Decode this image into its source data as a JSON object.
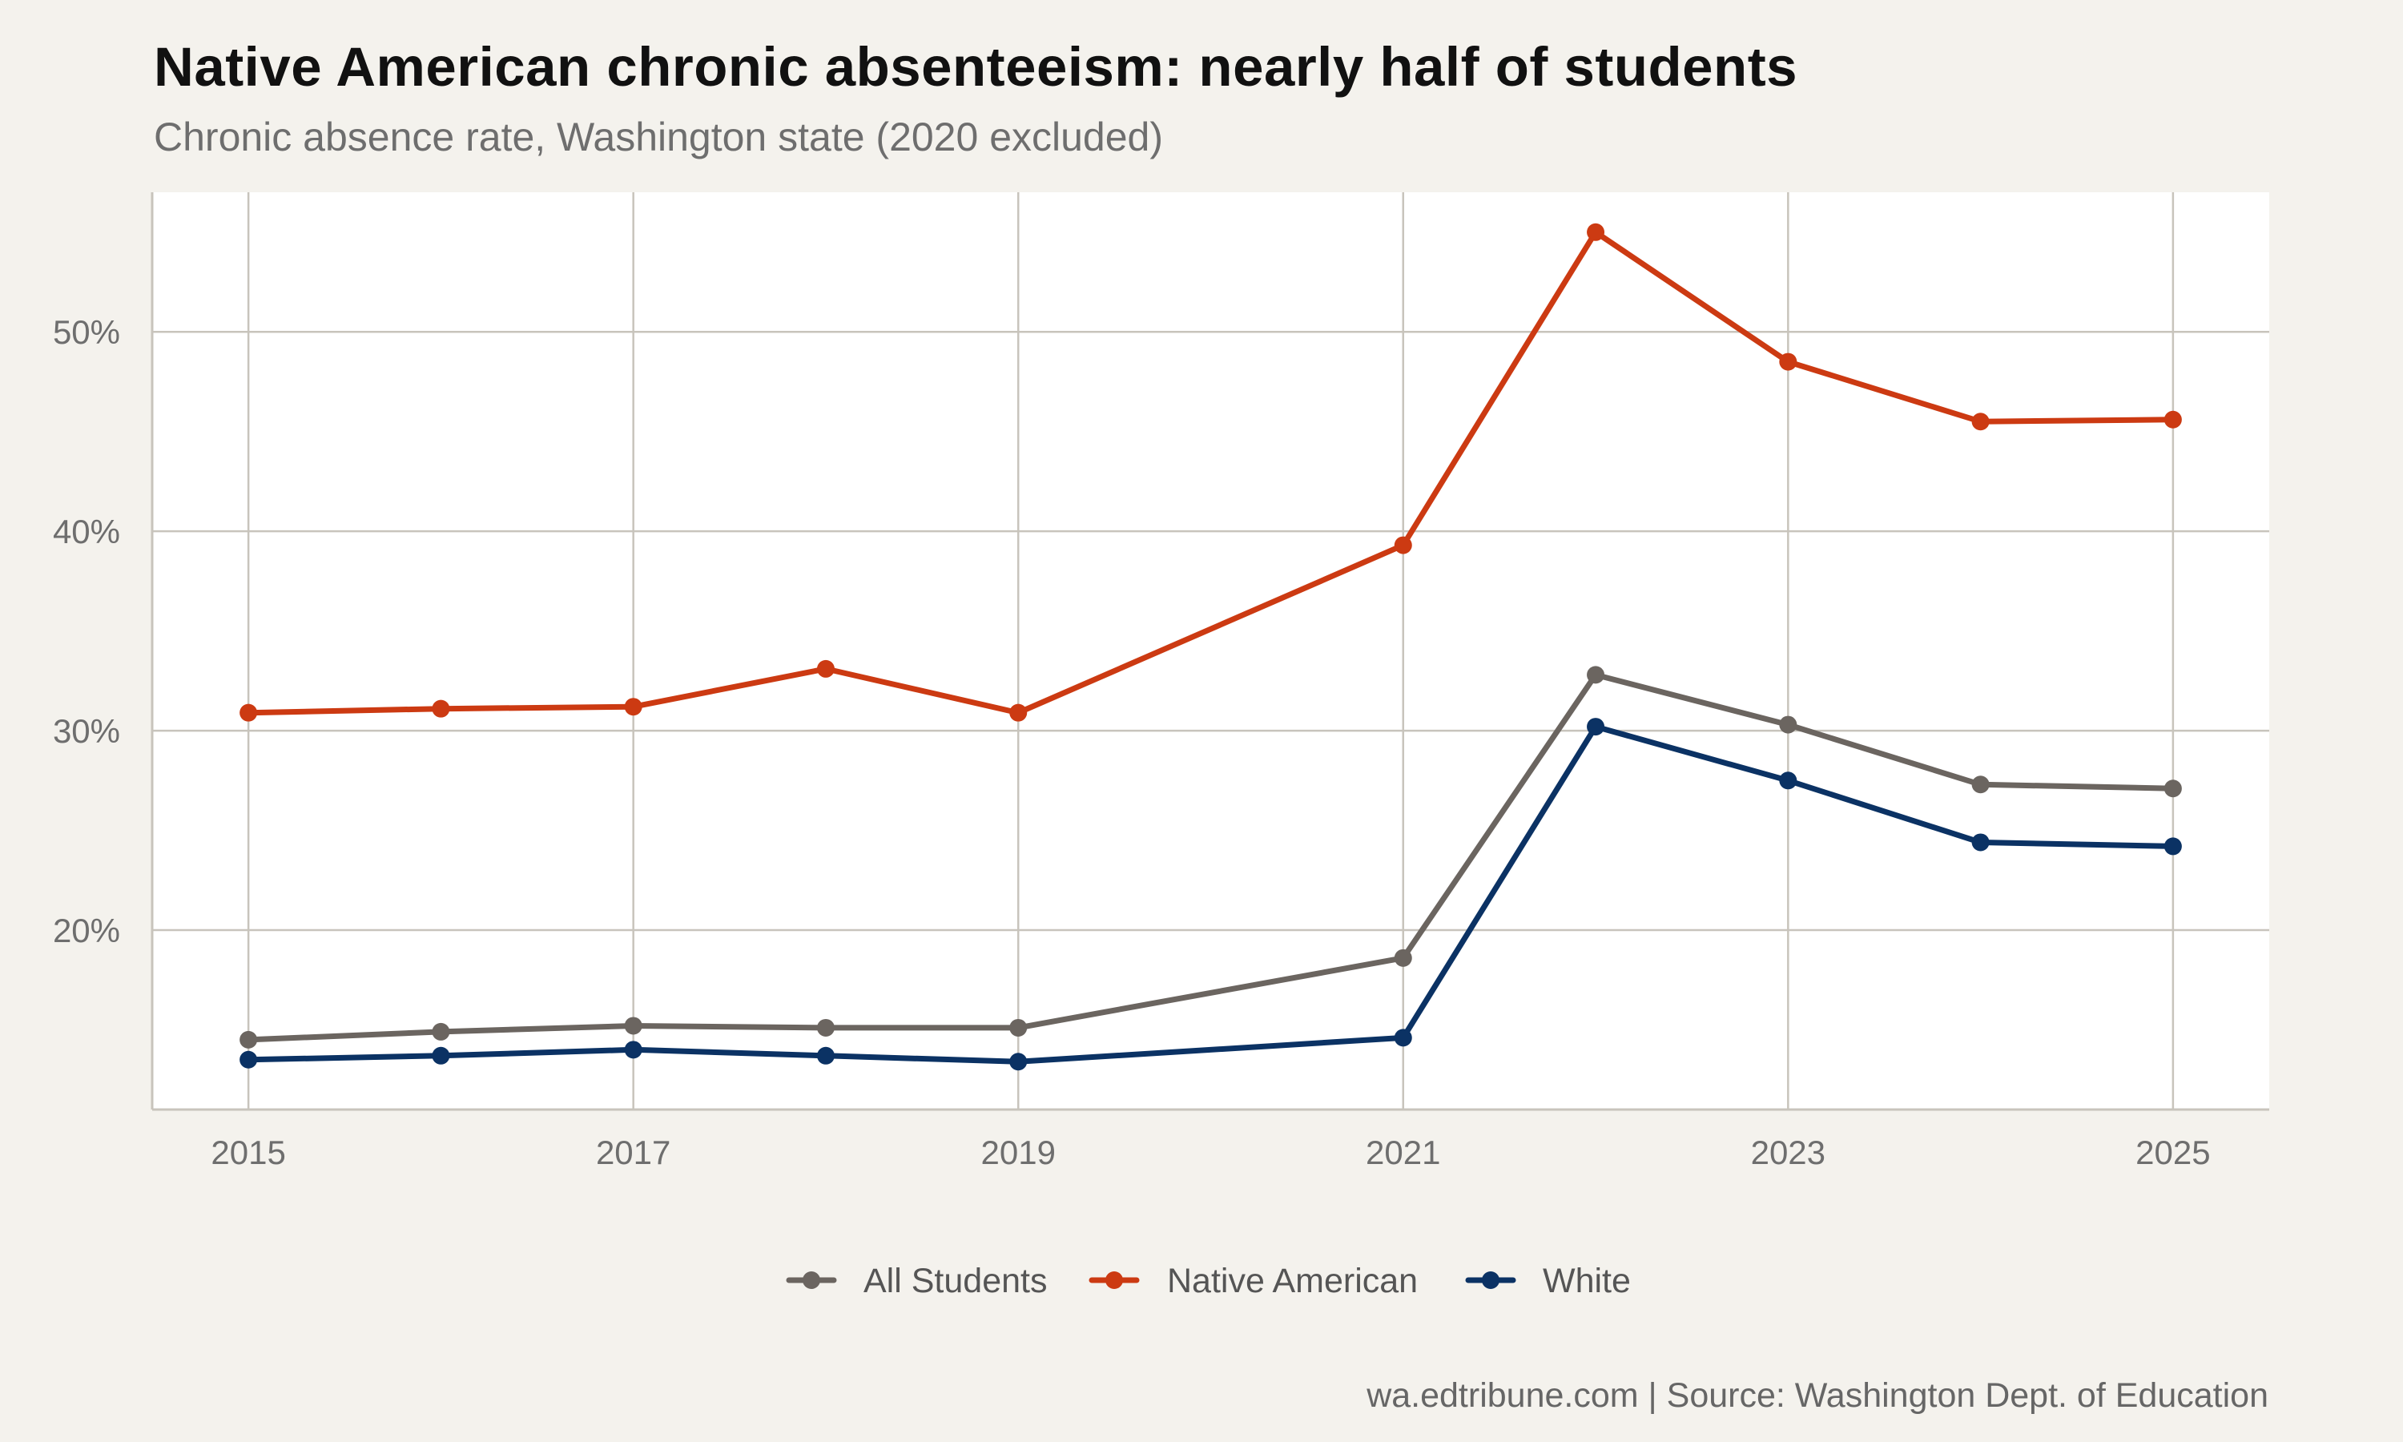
{
  "chart_data": {
    "type": "line",
    "title": "Native American chronic absenteeism: nearly half of students",
    "subtitle": "Chronic absence rate, Washington state (2020 excluded)",
    "caption": "wa.edtribune.com | Source: Washington Dept. of Education",
    "xlabel": "",
    "ylabel": "",
    "xlim": [
      2014.5,
      2025.5
    ],
    "ylim": [
      0.11,
      0.57
    ],
    "x_ticks": [
      2015,
      2017,
      2019,
      2021,
      2023,
      2025
    ],
    "x_tick_labels": [
      "2015",
      "2017",
      "2019",
      "2021",
      "2023",
      "2025"
    ],
    "y_ticks": [
      0.2,
      0.3,
      0.4,
      0.5
    ],
    "y_tick_labels": [
      "20%",
      "30%",
      "40%",
      "50%"
    ],
    "grid": true,
    "legend_position": "bottom",
    "series": [
      {
        "name": "All Students",
        "color": "#6b6560",
        "x": [
          2015,
          2016,
          2017,
          2018,
          2019,
          2021,
          2022,
          2023,
          2024,
          2025
        ],
        "values": [
          0.145,
          0.149,
          0.152,
          0.151,
          0.151,
          0.186,
          0.328,
          0.303,
          0.273,
          0.271
        ]
      },
      {
        "name": "Native American",
        "color": "#cc3a12",
        "x": [
          2015,
          2016,
          2017,
          2018,
          2019,
          2021,
          2022,
          2023,
          2024,
          2025
        ],
        "values": [
          0.309,
          0.311,
          0.312,
          0.331,
          0.309,
          0.393,
          0.55,
          0.485,
          0.455,
          0.456
        ]
      },
      {
        "name": "White",
        "color": "#0b3264",
        "x": [
          2015,
          2016,
          2017,
          2018,
          2019,
          2021,
          2022,
          2023,
          2024,
          2025
        ],
        "values": [
          0.135,
          0.137,
          0.14,
          0.137,
          0.134,
          0.146,
          0.302,
          0.275,
          0.244,
          0.242
        ]
      }
    ]
  }
}
